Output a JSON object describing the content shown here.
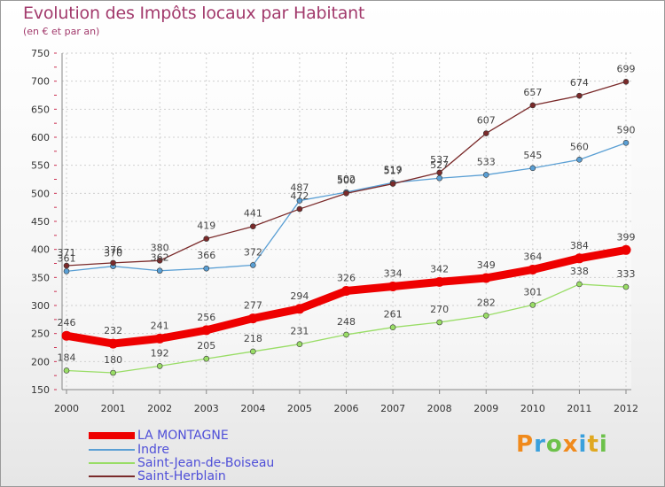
{
  "title": "Evolution des Impôts locaux par Habitant",
  "subtitle": "(en € et par an)",
  "logo": "Proxiti",
  "colors": {
    "title": "#a23a6c",
    "legend_text": "#4f4fd8",
    "la_montagne": "#ee0000",
    "indre": "#5a9fd4",
    "saint_jean": "#99dd66",
    "saint_herblain": "#7a2a2a"
  },
  "chart_data": {
    "type": "line",
    "title": "Evolution des Impôts locaux par Habitant",
    "subtitle": "(en € et par an)",
    "xlabel": "",
    "ylabel": "",
    "categories": [
      "2000",
      "2001",
      "2002",
      "2003",
      "2004",
      "2005",
      "2006",
      "2007",
      "2008",
      "2009",
      "2010",
      "2011",
      "2012"
    ],
    "ylim": [
      150,
      750
    ],
    "yticks": [
      150,
      200,
      250,
      300,
      350,
      400,
      450,
      500,
      550,
      600,
      650,
      700,
      750
    ],
    "grid": true,
    "legend_position": "bottom-left",
    "series": [
      {
        "name": "LA MONTAGNE",
        "color": "#ee0000",
        "emphasis": true,
        "values": [
          246,
          232,
          241,
          256,
          277,
          294,
          326,
          334,
          342,
          349,
          364,
          384,
          399
        ]
      },
      {
        "name": "Indre",
        "color": "#5a9fd4",
        "values": [
          361,
          370,
          362,
          366,
          372,
          487,
          502,
          519,
          527,
          533,
          545,
          560,
          590
        ]
      },
      {
        "name": "Saint-Jean-de-Boiseau",
        "color": "#99dd66",
        "values": [
          184,
          180,
          192,
          205,
          218,
          231,
          248,
          261,
          270,
          282,
          301,
          338,
          333
        ]
      },
      {
        "name": "Saint-Herblain",
        "color": "#7a2a2a",
        "values": [
          371,
          376,
          380,
          419,
          441,
          472,
          500,
          517,
          537,
          607,
          657,
          674,
          699
        ]
      }
    ]
  }
}
